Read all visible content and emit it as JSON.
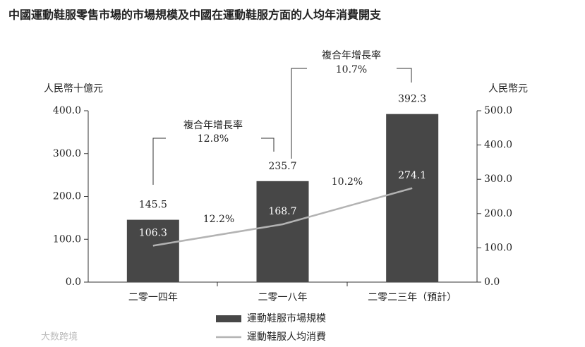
{
  "chart_data": {
    "type": "bar_line",
    "title": "中國運動鞋服零售市場的市場規模及中國在運動鞋服方面的人均年消費開支",
    "ylabel": "人民幣十億元",
    "y2label": "人民幣元",
    "categories": [
      "二零一四年",
      "二零一八年",
      "二零二三年（預計）"
    ],
    "series": [
      {
        "name": "運動鞋服市場規模",
        "type": "bar",
        "color": "#474747",
        "values": [
          145.5,
          235.7,
          392.3
        ]
      },
      {
        "name": "運動鞋服人均消費",
        "type": "line",
        "axis": "y2",
        "color": "#b3b3b3",
        "values": [
          106.3,
          168.7,
          274.1
        ]
      }
    ],
    "ylim": [
      0,
      400
    ],
    "yticks": [
      {
        "value": 0,
        "label": "0.0"
      },
      {
        "value": 100,
        "label": "100.0"
      },
      {
        "value": 200,
        "label": "200.0"
      },
      {
        "value": 300,
        "label": "300.0"
      },
      {
        "value": 400,
        "label": "400.0"
      }
    ],
    "y2lim": [
      0,
      500
    ],
    "y2ticks": [
      {
        "value": 0,
        "label": "0.0"
      },
      {
        "value": 100,
        "label": "100.0"
      },
      {
        "value": 200,
        "label": "200.0"
      },
      {
        "value": 300,
        "label": "300.0"
      },
      {
        "value": 400,
        "label": "400.0"
      },
      {
        "value": 500,
        "label": "500.0"
      }
    ],
    "cagr_annotations": [
      {
        "title": "複合年增長率",
        "label": "12.8%"
      },
      {
        "title": "複合年增長率",
        "label": "10.7%"
      }
    ],
    "line_growth_labels": [
      "12.2%",
      "10.2%"
    ],
    "watermark": "大数跨境"
  }
}
